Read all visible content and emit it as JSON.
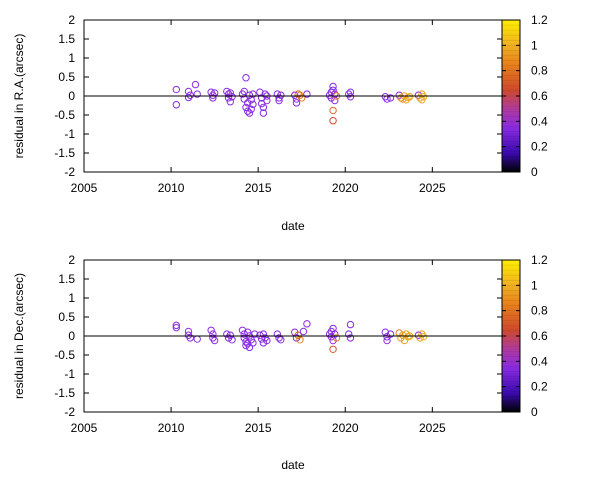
{
  "colors": {
    "frame": "#000000",
    "zero_line": "#000000"
  },
  "colorbar": {
    "min": 0,
    "max": 1.2,
    "ticks": [
      0,
      0.2,
      0.4,
      0.6,
      0.8,
      1,
      1.2
    ],
    "tick_labels": [
      "0",
      "0.2",
      "0.4",
      "0.6",
      "0.8",
      "1",
      "1.2"
    ],
    "stops": [
      {
        "v": 0.0,
        "c": "#000000"
      },
      {
        "v": 0.15,
        "c": "#3a0ab0"
      },
      {
        "v": 0.35,
        "c": "#8a2be2"
      },
      {
        "v": 0.5,
        "c": "#b03a9a"
      },
      {
        "v": 0.65,
        "c": "#d04a2a"
      },
      {
        "v": 0.85,
        "c": "#e8801a"
      },
      {
        "v": 1.0,
        "c": "#f0b020"
      },
      {
        "v": 1.2,
        "c": "#ffee00"
      }
    ]
  },
  "chart_data": [
    {
      "type": "scatter",
      "xlabel": "date",
      "ylabel": "residual in R.A.(arcsec)",
      "xlim": [
        2005,
        2029
      ],
      "ylim": [
        -2,
        2
      ],
      "xticks": [
        2005,
        2010,
        2015,
        2020,
        2025
      ],
      "xtick_labels": [
        "2005",
        "2010",
        "2015",
        "2020",
        "2025"
      ],
      "yticks": [
        -2,
        -1.5,
        -1,
        -0.5,
        0,
        0.5,
        1,
        1.5,
        2
      ],
      "ytick_labels": [
        "-2",
        "-1.5",
        "-1",
        "-0.5",
        "0",
        "0.5",
        "1",
        "1.5",
        "2"
      ],
      "zero_line": 0,
      "points": [
        {
          "x": 2010.3,
          "y": 0.17,
          "c": 0.35
        },
        {
          "x": 2010.3,
          "y": -0.23,
          "c": 0.35
        },
        {
          "x": 2011.0,
          "y": 0.12,
          "c": 0.35
        },
        {
          "x": 2011.0,
          "y": -0.04,
          "c": 0.35
        },
        {
          "x": 2011.1,
          "y": 0.02,
          "c": 0.35
        },
        {
          "x": 2011.4,
          "y": 0.3,
          "c": 0.35
        },
        {
          "x": 2011.5,
          "y": 0.05,
          "c": 0.35
        },
        {
          "x": 2012.3,
          "y": 0.1,
          "c": 0.35
        },
        {
          "x": 2012.4,
          "y": 0.02,
          "c": 0.35
        },
        {
          "x": 2012.4,
          "y": -0.05,
          "c": 0.35
        },
        {
          "x": 2012.5,
          "y": 0.08,
          "c": 0.35
        },
        {
          "x": 2013.2,
          "y": 0.12,
          "c": 0.35
        },
        {
          "x": 2013.3,
          "y": 0.05,
          "c": 0.35
        },
        {
          "x": 2013.3,
          "y": -0.05,
          "c": 0.35
        },
        {
          "x": 2013.4,
          "y": -0.15,
          "c": 0.35
        },
        {
          "x": 2013.4,
          "y": 0.08,
          "c": 0.35
        },
        {
          "x": 2013.5,
          "y": -0.02,
          "c": 0.35
        },
        {
          "x": 2014.1,
          "y": 0.05,
          "c": 0.35
        },
        {
          "x": 2014.2,
          "y": -0.08,
          "c": 0.35
        },
        {
          "x": 2014.2,
          "y": 0.12,
          "c": 0.35
        },
        {
          "x": 2014.3,
          "y": 0.48,
          "c": 0.35
        },
        {
          "x": 2014.3,
          "y": -0.3,
          "c": 0.35
        },
        {
          "x": 2014.4,
          "y": -0.4,
          "c": 0.35
        },
        {
          "x": 2014.4,
          "y": -0.18,
          "c": 0.35
        },
        {
          "x": 2014.5,
          "y": -0.45,
          "c": 0.35
        },
        {
          "x": 2014.5,
          "y": 0.02,
          "c": 0.35
        },
        {
          "x": 2014.6,
          "y": -0.1,
          "c": 0.35
        },
        {
          "x": 2014.6,
          "y": -0.35,
          "c": 0.35
        },
        {
          "x": 2014.7,
          "y": 0.05,
          "c": 0.35
        },
        {
          "x": 2014.7,
          "y": -0.22,
          "c": 0.35
        },
        {
          "x": 2015.1,
          "y": 0.1,
          "c": 0.35
        },
        {
          "x": 2015.2,
          "y": -0.05,
          "c": 0.35
        },
        {
          "x": 2015.2,
          "y": -0.2,
          "c": 0.35
        },
        {
          "x": 2015.3,
          "y": -0.3,
          "c": 0.35
        },
        {
          "x": 2015.3,
          "y": -0.45,
          "c": 0.35
        },
        {
          "x": 2015.4,
          "y": 0.05,
          "c": 0.35
        },
        {
          "x": 2015.5,
          "y": -0.12,
          "c": 0.35
        },
        {
          "x": 2015.5,
          "y": 0.0,
          "c": 0.35
        },
        {
          "x": 2016.1,
          "y": 0.05,
          "c": 0.35
        },
        {
          "x": 2016.2,
          "y": -0.05,
          "c": 0.35
        },
        {
          "x": 2016.2,
          "y": -0.12,
          "c": 0.35
        },
        {
          "x": 2016.3,
          "y": 0.02,
          "c": 0.35
        },
        {
          "x": 2017.1,
          "y": 0.02,
          "c": 0.35
        },
        {
          "x": 2017.2,
          "y": -0.08,
          "c": 0.35
        },
        {
          "x": 2017.2,
          "y": -0.18,
          "c": 0.35
        },
        {
          "x": 2017.3,
          "y": 0.05,
          "c": 0.75
        },
        {
          "x": 2017.4,
          "y": 0.02,
          "c": 0.85
        },
        {
          "x": 2017.5,
          "y": -0.05,
          "c": 0.85
        },
        {
          "x": 2017.8,
          "y": 0.05,
          "c": 0.35
        },
        {
          "x": 2019.1,
          "y": 0.02,
          "c": 0.35
        },
        {
          "x": 2019.2,
          "y": 0.1,
          "c": 0.35
        },
        {
          "x": 2019.2,
          "y": -0.05,
          "c": 0.35
        },
        {
          "x": 2019.3,
          "y": 0.25,
          "c": 0.35
        },
        {
          "x": 2019.3,
          "y": 0.15,
          "c": 0.35
        },
        {
          "x": 2019.3,
          "y": -0.38,
          "c": 0.75
        },
        {
          "x": 2019.3,
          "y": -0.65,
          "c": 0.65
        },
        {
          "x": 2019.4,
          "y": 0.05,
          "c": 0.35
        },
        {
          "x": 2019.4,
          "y": -0.12,
          "c": 0.35
        },
        {
          "x": 2019.5,
          "y": 0.0,
          "c": 0.85
        },
        {
          "x": 2020.2,
          "y": 0.05,
          "c": 0.35
        },
        {
          "x": 2020.3,
          "y": -0.02,
          "c": 0.35
        },
        {
          "x": 2020.3,
          "y": 0.1,
          "c": 0.35
        },
        {
          "x": 2022.3,
          "y": -0.02,
          "c": 0.35
        },
        {
          "x": 2022.4,
          "y": -0.08,
          "c": 0.35
        },
        {
          "x": 2022.6,
          "y": -0.05,
          "c": 0.35
        },
        {
          "x": 2023.1,
          "y": 0.02,
          "c": 0.35
        },
        {
          "x": 2023.2,
          "y": -0.05,
          "c": 0.85
        },
        {
          "x": 2023.3,
          "y": -0.08,
          "c": 0.95
        },
        {
          "x": 2023.4,
          "y": 0.0,
          "c": 0.95
        },
        {
          "x": 2023.5,
          "y": -0.1,
          "c": 0.95
        },
        {
          "x": 2023.6,
          "y": -0.04,
          "c": 1.0
        },
        {
          "x": 2023.7,
          "y": -0.02,
          "c": 0.95
        },
        {
          "x": 2024.2,
          "y": 0.02,
          "c": 0.35
        },
        {
          "x": 2024.3,
          "y": -0.05,
          "c": 0.95
        },
        {
          "x": 2024.4,
          "y": -0.1,
          "c": 0.95
        },
        {
          "x": 2024.4,
          "y": 0.05,
          "c": 0.95
        },
        {
          "x": 2024.5,
          "y": -0.02,
          "c": 1.0
        }
      ]
    },
    {
      "type": "scatter",
      "xlabel": "date",
      "ylabel": "residual in Dec.(arcsec)",
      "xlim": [
        2005,
        2029
      ],
      "ylim": [
        -2,
        2
      ],
      "xticks": [
        2005,
        2010,
        2015,
        2020,
        2025
      ],
      "xtick_labels": [
        "2005",
        "2010",
        "2015",
        "2020",
        "2025"
      ],
      "yticks": [
        -2,
        -1.5,
        -1,
        -0.5,
        0,
        0.5,
        1,
        1.5,
        2
      ],
      "ytick_labels": [
        "-2",
        "-1.5",
        "-1",
        "-0.5",
        "0",
        "0.5",
        "1",
        "1.5",
        "2"
      ],
      "zero_line": 0,
      "points": [
        {
          "x": 2010.3,
          "y": 0.28,
          "c": 0.35
        },
        {
          "x": 2010.3,
          "y": 0.22,
          "c": 0.35
        },
        {
          "x": 2011.0,
          "y": 0.12,
          "c": 0.35
        },
        {
          "x": 2011.0,
          "y": 0.02,
          "c": 0.35
        },
        {
          "x": 2011.1,
          "y": -0.05,
          "c": 0.35
        },
        {
          "x": 2011.5,
          "y": -0.08,
          "c": 0.35
        },
        {
          "x": 2012.3,
          "y": 0.15,
          "c": 0.35
        },
        {
          "x": 2012.4,
          "y": 0.05,
          "c": 0.35
        },
        {
          "x": 2012.4,
          "y": -0.05,
          "c": 0.35
        },
        {
          "x": 2012.5,
          "y": -0.12,
          "c": 0.35
        },
        {
          "x": 2013.2,
          "y": 0.05,
          "c": 0.35
        },
        {
          "x": 2013.3,
          "y": -0.05,
          "c": 0.35
        },
        {
          "x": 2013.4,
          "y": 0.02,
          "c": 0.35
        },
        {
          "x": 2013.5,
          "y": -0.1,
          "c": 0.35
        },
        {
          "x": 2014.1,
          "y": 0.15,
          "c": 0.35
        },
        {
          "x": 2014.2,
          "y": 0.05,
          "c": 0.35
        },
        {
          "x": 2014.2,
          "y": -0.05,
          "c": 0.35
        },
        {
          "x": 2014.3,
          "y": -0.15,
          "c": 0.35
        },
        {
          "x": 2014.3,
          "y": -0.25,
          "c": 0.35
        },
        {
          "x": 2014.4,
          "y": 0.1,
          "c": 0.35
        },
        {
          "x": 2014.4,
          "y": -0.2,
          "c": 0.35
        },
        {
          "x": 2014.5,
          "y": -0.3,
          "c": 0.35
        },
        {
          "x": 2014.5,
          "y": 0.0,
          "c": 0.35
        },
        {
          "x": 2014.6,
          "y": -0.1,
          "c": 0.35
        },
        {
          "x": 2014.7,
          "y": -0.18,
          "c": 0.35
        },
        {
          "x": 2014.8,
          "y": 0.05,
          "c": 0.35
        },
        {
          "x": 2015.1,
          "y": 0.02,
          "c": 0.35
        },
        {
          "x": 2015.2,
          "y": -0.08,
          "c": 0.35
        },
        {
          "x": 2015.3,
          "y": 0.05,
          "c": 0.35
        },
        {
          "x": 2015.3,
          "y": -0.18,
          "c": 0.35
        },
        {
          "x": 2015.4,
          "y": -0.05,
          "c": 0.35
        },
        {
          "x": 2015.5,
          "y": -0.12,
          "c": 0.35
        },
        {
          "x": 2016.1,
          "y": 0.05,
          "c": 0.35
        },
        {
          "x": 2016.2,
          "y": -0.05,
          "c": 0.35
        },
        {
          "x": 2016.3,
          "y": -0.1,
          "c": 0.35
        },
        {
          "x": 2017.1,
          "y": 0.1,
          "c": 0.35
        },
        {
          "x": 2017.2,
          "y": -0.05,
          "c": 0.35
        },
        {
          "x": 2017.3,
          "y": 0.02,
          "c": 0.75
        },
        {
          "x": 2017.4,
          "y": -0.1,
          "c": 0.85
        },
        {
          "x": 2017.6,
          "y": 0.12,
          "c": 0.35
        },
        {
          "x": 2017.8,
          "y": 0.32,
          "c": 0.35
        },
        {
          "x": 2019.1,
          "y": 0.05,
          "c": 0.35
        },
        {
          "x": 2019.2,
          "y": 0.12,
          "c": 0.35
        },
        {
          "x": 2019.2,
          "y": -0.02,
          "c": 0.35
        },
        {
          "x": 2019.3,
          "y": 0.2,
          "c": 0.35
        },
        {
          "x": 2019.3,
          "y": -0.12,
          "c": 0.35
        },
        {
          "x": 2019.3,
          "y": -0.35,
          "c": 0.7
        },
        {
          "x": 2019.4,
          "y": 0.05,
          "c": 0.35
        },
        {
          "x": 2019.5,
          "y": -0.05,
          "c": 0.85
        },
        {
          "x": 2020.2,
          "y": 0.05,
          "c": 0.35
        },
        {
          "x": 2020.3,
          "y": -0.05,
          "c": 0.35
        },
        {
          "x": 2020.3,
          "y": 0.3,
          "c": 0.35
        },
        {
          "x": 2022.3,
          "y": 0.1,
          "c": 0.35
        },
        {
          "x": 2022.4,
          "y": -0.02,
          "c": 0.35
        },
        {
          "x": 2022.4,
          "y": -0.12,
          "c": 0.35
        },
        {
          "x": 2022.6,
          "y": 0.05,
          "c": 0.35
        },
        {
          "x": 2023.1,
          "y": 0.08,
          "c": 0.85
        },
        {
          "x": 2023.2,
          "y": -0.05,
          "c": 0.95
        },
        {
          "x": 2023.3,
          "y": 0.02,
          "c": 0.95
        },
        {
          "x": 2023.4,
          "y": -0.12,
          "c": 0.95
        },
        {
          "x": 2023.5,
          "y": 0.05,
          "c": 0.95
        },
        {
          "x": 2023.6,
          "y": -0.02,
          "c": 1.0
        },
        {
          "x": 2023.7,
          "y": 0.0,
          "c": 0.95
        },
        {
          "x": 2024.2,
          "y": 0.02,
          "c": 0.35
        },
        {
          "x": 2024.3,
          "y": -0.05,
          "c": 0.95
        },
        {
          "x": 2024.4,
          "y": 0.05,
          "c": 0.95
        },
        {
          "x": 2024.5,
          "y": -0.02,
          "c": 1.0
        }
      ]
    }
  ]
}
